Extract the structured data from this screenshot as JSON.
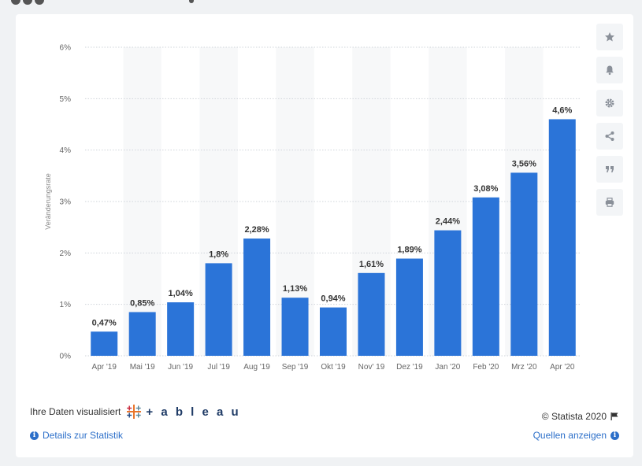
{
  "colors": {
    "bar": "#2b74d8",
    "grid": "#cfd4da",
    "band": "#f7f8f9",
    "link": "#2c6fc9"
  },
  "chart_data": {
    "type": "bar",
    "title": "",
    "xlabel": "",
    "ylabel": "Veränderungsrate",
    "ylim": [
      0,
      6
    ],
    "y_ticks": [
      "0%",
      "1%",
      "2%",
      "3%",
      "4%",
      "5%",
      "6%"
    ],
    "y_tick_values": [
      0,
      1,
      2,
      3,
      4,
      5,
      6
    ],
    "categories": [
      "Apr '19",
      "Mai '19",
      "Jun '19",
      "Jul '19",
      "Aug '19",
      "Sep '19",
      "Okt '19",
      "Nov' 19",
      "Dez '19",
      "Jan '20",
      "Feb '20",
      "Mrz '20",
      "Apr '20"
    ],
    "values": [
      0.47,
      0.85,
      1.04,
      1.8,
      2.28,
      1.13,
      0.94,
      1.61,
      1.89,
      2.44,
      3.08,
      3.56,
      4.6
    ],
    "data_labels": [
      "0,47%",
      "0,85%",
      "1,04%",
      "1,8%",
      "2,28%",
      "1,13%",
      "0,94%",
      "1,61%",
      "1,89%",
      "2,44%",
      "3,08%",
      "3,56%",
      "4,6%"
    ],
    "grid": true
  },
  "tools": [
    {
      "name": "star-icon"
    },
    {
      "name": "bell-icon"
    },
    {
      "name": "gear-icon"
    },
    {
      "name": "share-icon"
    },
    {
      "name": "quote-icon"
    },
    {
      "name": "print-icon"
    }
  ],
  "footer": {
    "visualize_text": "Ihre Daten visualisiert",
    "tableau_word": "+ a b l e a u",
    "copyright": "© Statista 2020",
    "details_link": "Details zur Statistik",
    "sources_link": "Quellen anzeigen",
    "info_glyph": "i"
  }
}
